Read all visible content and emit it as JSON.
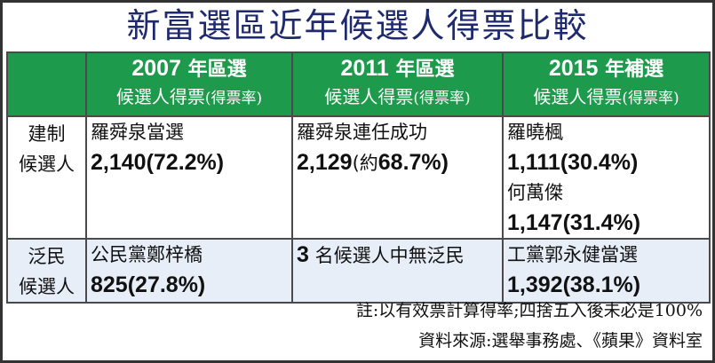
{
  "title": "新富選區近年候選人得票比較",
  "header": {
    "col1": {
      "year": "2007",
      "type": "年區選",
      "sub": "候選人得票",
      "paren": "(得票率)"
    },
    "col2": {
      "year": "2011",
      "type": "年區選",
      "sub": "候選人得票",
      "paren": "(得票率)"
    },
    "col3": {
      "year": "2015",
      "type": "年補選",
      "sub": "候選人得票",
      "paren": "(得票率)"
    }
  },
  "rows": {
    "establishment": {
      "label_line1": "建制",
      "label_line2": "候選人",
      "c2007": {
        "name": "羅舜泉當選",
        "votes": "2,140",
        "rate": "(72.2%)"
      },
      "c2011": {
        "name": "羅舜泉連任成功",
        "votes": "2,129",
        "about": "(約",
        "rate": "68.7%)"
      },
      "c2015": [
        {
          "name": "羅曉楓",
          "votes": "1,111",
          "rate": "(30.4%)"
        },
        {
          "name": "何萬傑",
          "votes": "1,147",
          "rate": "(31.4%)"
        }
      ]
    },
    "democrat": {
      "label_line1": "泛民",
      "label_line2": "候選人",
      "c2007": {
        "name": "公民黨鄭梓橋",
        "votes": "825",
        "rate": "(27.8%)"
      },
      "c2011": {
        "count": "3",
        "text": "名候選人中無泛民"
      },
      "c2015": {
        "name": "工黨郭永健當選",
        "votes": "1,392",
        "rate": "(38.1%)"
      }
    }
  },
  "notes": {
    "note1": "註:以有效票計算得率;四捨五入後未必是100%",
    "note2": "資料來源:選舉事務處、《蘋果》資料室"
  },
  "colors": {
    "header_bg": "#1e9a4c",
    "title": "#1f2a6e",
    "dem_row_bg": "#e7eef8"
  }
}
